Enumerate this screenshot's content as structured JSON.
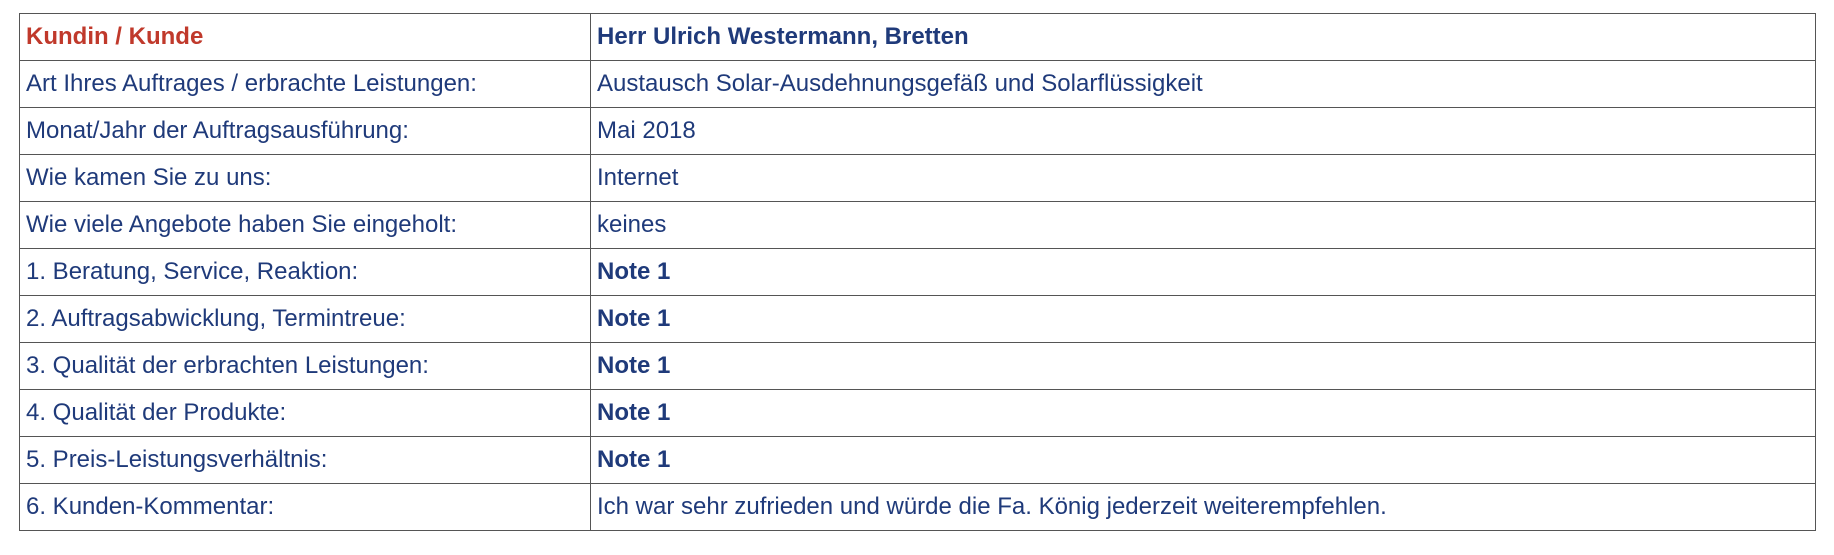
{
  "header": {
    "label": "Kundin / Kunde",
    "value": "Herr Ulrich Westermann, Bretten"
  },
  "rows": [
    {
      "label": "Art Ihres Auftrages / erbrachte Leistungen:",
      "value": "Austausch Solar-Ausdehnungsgefäß und Solarflüssigkeit"
    },
    {
      "label": "Monat/Jahr der Auftragsausführung:",
      "value": "Mai 2018"
    },
    {
      "label": "Wie kamen Sie zu uns:",
      "value": "Internet"
    },
    {
      "label": "Wie viele Angebote haben Sie eingeholt:",
      "value": "keines"
    },
    {
      "label": "1. Beratung, Service, Reaktion:",
      "value": "Note 1"
    },
    {
      "label": "2. Auftragsabwicklung, Termintreue:",
      "value": "Note 1"
    },
    {
      "label": "3. Qualität der erbrachten Leistungen:",
      "value": "Note 1"
    },
    {
      "label": "4. Qualität der Produkte:",
      "value": "Note 1"
    },
    {
      "label": "5. Preis-Leistungsverhältnis:",
      "value": "Note 1"
    },
    {
      "label": "6. Kunden-Kommentar:",
      "value": "Ich war sehr zufrieden und würde die Fa. König jederzeit weiterempfehlen."
    }
  ]
}
